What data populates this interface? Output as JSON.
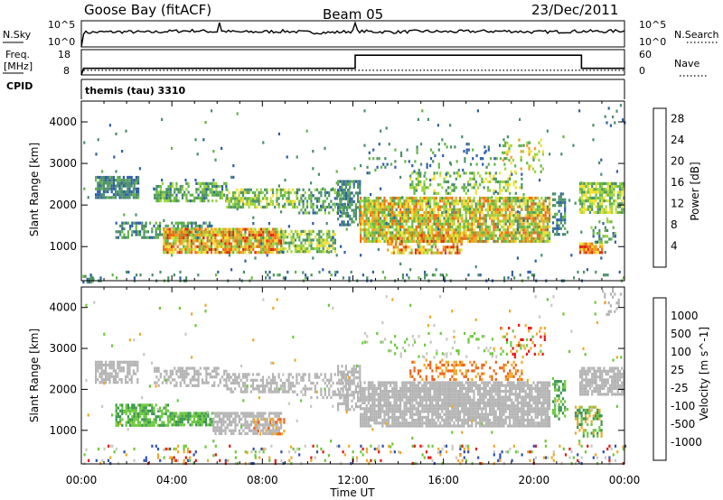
{
  "header": {
    "station": "Goose Bay (fitACF)",
    "beam": "Beam 05",
    "date": "23/Dec/2011"
  },
  "top_panels": {
    "nsky_label": "N.Sky",
    "nsky_ticks": [
      "10^5",
      "10^0"
    ],
    "nsearch_label": "N.Search",
    "nsearch_ticks": [
      "10^5",
      "10^0"
    ],
    "freq_label": "Freq.",
    "freq_unit": "[MHz]",
    "freq_ticks": [
      "18",
      "8"
    ],
    "nave_label": "Nave",
    "nave_ticks": [
      "60",
      "0"
    ],
    "cpid_label": "CPID",
    "cpid_value": "themis (tau) 3310"
  },
  "colors": {
    "power": [
      "#2a2ad8",
      "#2f5ea8",
      "#4a8f6a",
      "#63b545",
      "#9cd43e",
      "#f0e030",
      "#f2a020",
      "#f06a10",
      "#e02a10",
      "#d01818"
    ],
    "velocity": [
      "#e81414",
      "#f0641a",
      "#f0a828",
      "#c8c8c0",
      "#c8c8c0",
      "#6cc83c",
      "#3c9650",
      "#3050b0",
      "#2020c8"
    ],
    "ground": "#b4b4b4"
  },
  "x_axis": {
    "label": "Time UT",
    "ticks": [
      "00:00",
      "04:00",
      "08:00",
      "12:00",
      "16:00",
      "20:00",
      "00:00"
    ]
  },
  "chart_data": [
    {
      "type": "line",
      "name": "N.Sky / N.Search",
      "x_hours": [
        0,
        0.1,
        1,
        2,
        3,
        4,
        5,
        6,
        6.1,
        6.2,
        7,
        8,
        9,
        10,
        11,
        12,
        12.1,
        12.2,
        13,
        14,
        15,
        16,
        17,
        18,
        19,
        20,
        21,
        22,
        23,
        24
      ],
      "y_fraction": [
        0.0,
        0.55,
        0.57,
        0.58,
        0.56,
        0.6,
        0.62,
        0.58,
        0.95,
        0.6,
        0.57,
        0.58,
        0.6,
        0.56,
        0.55,
        0.6,
        0.9,
        0.6,
        0.58,
        0.57,
        0.6,
        0.58,
        0.59,
        0.6,
        0.6,
        0.57,
        0.58,
        0.6,
        0.59,
        0.62
      ]
    },
    {
      "type": "line",
      "name": "Freq.",
      "unit": "MHz",
      "x": [
        0,
        0.1,
        12.1,
        12.1,
        22.1,
        22.1,
        24
      ],
      "y": [
        8,
        10.6,
        10.6,
        15.8,
        15.8,
        10.6,
        10.6
      ]
    },
    {
      "type": "line",
      "name": "Nave",
      "x": [
        0.1,
        24
      ],
      "y": [
        11,
        11
      ]
    },
    {
      "type": "heatmap",
      "title": "Power",
      "unit": "dB",
      "ylabel": "Slant Range [km]",
      "xlabel": "Time UT",
      "xlim": [
        0,
        24
      ],
      "ylim": [
        180,
        4500
      ],
      "yticks": [
        1000,
        2000,
        3000,
        4000
      ],
      "colorbar": {
        "label": "Power [dB]",
        "ticks": [
          4,
          8,
          12,
          16,
          20,
          24,
          28
        ],
        "range": [
          0,
          30
        ]
      },
      "regions": [
        {
          "t": [
            0.05,
            0.55
          ],
          "r": [
            180,
            320
          ],
          "v": [
            4,
            10
          ],
          "d": 0.35
        },
        {
          "t": [
            0.6,
            2.3
          ],
          "r": [
            2200,
            2700
          ],
          "v": [
            4,
            10
          ],
          "d": 0.85
        },
        {
          "t": [
            2.3,
            2.5
          ],
          "r": [
            2200,
            2700
          ],
          "v": [
            4,
            10
          ],
          "d": 0.85
        },
        {
          "t": [
            3.2,
            6.4
          ],
          "r": [
            2100,
            2550
          ],
          "v": [
            5,
            14
          ],
          "d": 0.6
        },
        {
          "t": [
            6.4,
            9.5
          ],
          "r": [
            1950,
            2400
          ],
          "v": [
            6,
            18
          ],
          "d": 0.65
        },
        {
          "t": [
            9.5,
            11.8
          ],
          "r": [
            1800,
            2400
          ],
          "v": [
            5,
            14
          ],
          "d": 0.5
        },
        {
          "t": [
            1.5,
            5.8
          ],
          "r": [
            1200,
            1600
          ],
          "v": [
            4,
            12
          ],
          "d": 0.55
        },
        {
          "t": [
            3.6,
            8.8
          ],
          "r": [
            850,
            1450
          ],
          "v": [
            10,
            26
          ],
          "d": 0.9
        },
        {
          "t": [
            8.8,
            11.2
          ],
          "r": [
            900,
            1400
          ],
          "v": [
            6,
            18
          ],
          "d": 0.7
        },
        {
          "t": [
            11.3,
            12.3
          ],
          "r": [
            1500,
            2600
          ],
          "v": [
            4,
            10
          ],
          "d": 0.65
        },
        {
          "t": [
            12.3,
            20.7
          ],
          "r": [
            1100,
            2200
          ],
          "v": [
            8,
            24
          ],
          "d": 0.85
        },
        {
          "t": [
            13.5,
            16.8
          ],
          "r": [
            850,
            1300
          ],
          "v": [
            12,
            26
          ],
          "d": 0.65
        },
        {
          "t": [
            14.5,
            19.5
          ],
          "r": [
            2250,
            2800
          ],
          "v": [
            6,
            18
          ],
          "d": 0.35
        },
        {
          "t": [
            12.6,
            18.8
          ],
          "r": [
            2800,
            3500
          ],
          "v": [
            4,
            12
          ],
          "d": 0.12
        },
        {
          "t": [
            18.6,
            20.4
          ],
          "r": [
            2800,
            3600
          ],
          "v": [
            8,
            20
          ],
          "d": 0.2
        },
        {
          "t": [
            20.8,
            21.4
          ],
          "r": [
            1300,
            2300
          ],
          "v": [
            4,
            10
          ],
          "d": 0.6
        },
        {
          "t": [
            22,
            24
          ],
          "r": [
            1850,
            2550
          ],
          "v": [
            6,
            18
          ],
          "d": 0.8
        },
        {
          "t": [
            22,
            23
          ],
          "r": [
            850,
            1100
          ],
          "v": [
            16,
            26
          ],
          "d": 0.8
        },
        {
          "t": [
            22.5,
            23.6
          ],
          "r": [
            1100,
            1700
          ],
          "v": [
            4,
            14
          ],
          "d": 0.35
        },
        {
          "t": [
            0.2,
            24
          ],
          "r": [
            180,
            420
          ],
          "v": [
            4,
            10
          ],
          "d": 0.1
        },
        {
          "t": [
            23,
            24
          ],
          "r": [
            3900,
            4500
          ],
          "v": [
            4,
            8
          ],
          "d": 0.15
        },
        {
          "t": [
            0,
            24
          ],
          "r": [
            400,
            4300
          ],
          "v": [
            4,
            10
          ],
          "d": 0.012
        }
      ]
    },
    {
      "type": "heatmap",
      "title": "Velocity",
      "unit": "m s^-1",
      "ylabel": "Slant Range [km]",
      "xlabel": "Time UT",
      "xlim": [
        0,
        24
      ],
      "ylim": [
        180,
        4500
      ],
      "yticks": [
        1000,
        2000,
        3000,
        4000
      ],
      "colorbar": {
        "label": "Velocity [m s^-1]",
        "ticks": [
          -1000,
          -500,
          -100,
          -25,
          25,
          100,
          500,
          1000
        ]
      },
      "regions": [
        {
          "t": [
            0.6,
            2.5
          ],
          "r": [
            2200,
            2700
          ],
          "k": "ground",
          "d": 0.7
        },
        {
          "t": [
            3.2,
            6.4
          ],
          "r": [
            2100,
            2550
          ],
          "k": "ground",
          "d": 0.5
        },
        {
          "t": [
            6.4,
            9.5
          ],
          "r": [
            1950,
            2400
          ],
          "k": "ground",
          "d": 0.55
        },
        {
          "t": [
            9.5,
            11.8
          ],
          "r": [
            1800,
            2400
          ],
          "k": "ground",
          "d": 0.4
        },
        {
          "t": [
            1.5,
            3.8
          ],
          "r": [
            1150,
            1650
          ],
          "k": [
            5,
            6
          ],
          "d": 0.7
        },
        {
          "t": [
            3.8,
            5.8
          ],
          "r": [
            1100,
            1450
          ],
          "k": [
            5,
            6
          ],
          "d": 0.75
        },
        {
          "t": [
            5.8,
            8.8
          ],
          "r": [
            900,
            1450
          ],
          "k": "ground",
          "d": 0.7
        },
        {
          "t": [
            7.6,
            9.0
          ],
          "r": [
            900,
            1300
          ],
          "k": [
            1,
            2
          ],
          "d": 0.35
        },
        {
          "t": [
            11.3,
            12.3
          ],
          "r": [
            1500,
            2600
          ],
          "k": "ground",
          "d": 0.5
        },
        {
          "t": [
            12.3,
            20.7
          ],
          "r": [
            1100,
            2200
          ],
          "k": "ground",
          "d": 0.85
        },
        {
          "t": [
            14.5,
            19.5
          ],
          "r": [
            2250,
            2700
          ],
          "k": [
            1,
            2
          ],
          "d": 0.35
        },
        {
          "t": [
            18.5,
            20.5
          ],
          "r": [
            2800,
            3600
          ],
          "k": [
            0,
            2,
            5
          ],
          "d": 0.22
        },
        {
          "t": [
            12.5,
            18.5
          ],
          "r": [
            2800,
            3400
          ],
          "k": [
            3,
            5
          ],
          "d": 0.1
        },
        {
          "t": [
            20.8,
            21.4
          ],
          "r": [
            1300,
            2300
          ],
          "k": [
            5,
            6
          ],
          "d": 0.5
        },
        {
          "t": [
            22,
            24
          ],
          "r": [
            1850,
            2550
          ],
          "k": "ground",
          "d": 0.75
        },
        {
          "t": [
            21.8,
            23
          ],
          "r": [
            850,
            1600
          ],
          "k": [
            5,
            6,
            2
          ],
          "d": 0.5
        },
        {
          "t": [
            0.1,
            24
          ],
          "r": [
            180,
            650
          ],
          "k": [
            0,
            2,
            5,
            7,
            3
          ],
          "d": 0.15
        },
        {
          "t": [
            23,
            24
          ],
          "r": [
            3800,
            4500
          ],
          "k": "ground",
          "d": 0.2
        },
        {
          "t": [
            0,
            24
          ],
          "r": [
            400,
            4300
          ],
          "k": [
            2,
            3,
            5
          ],
          "d": 0.01
        }
      ]
    }
  ]
}
